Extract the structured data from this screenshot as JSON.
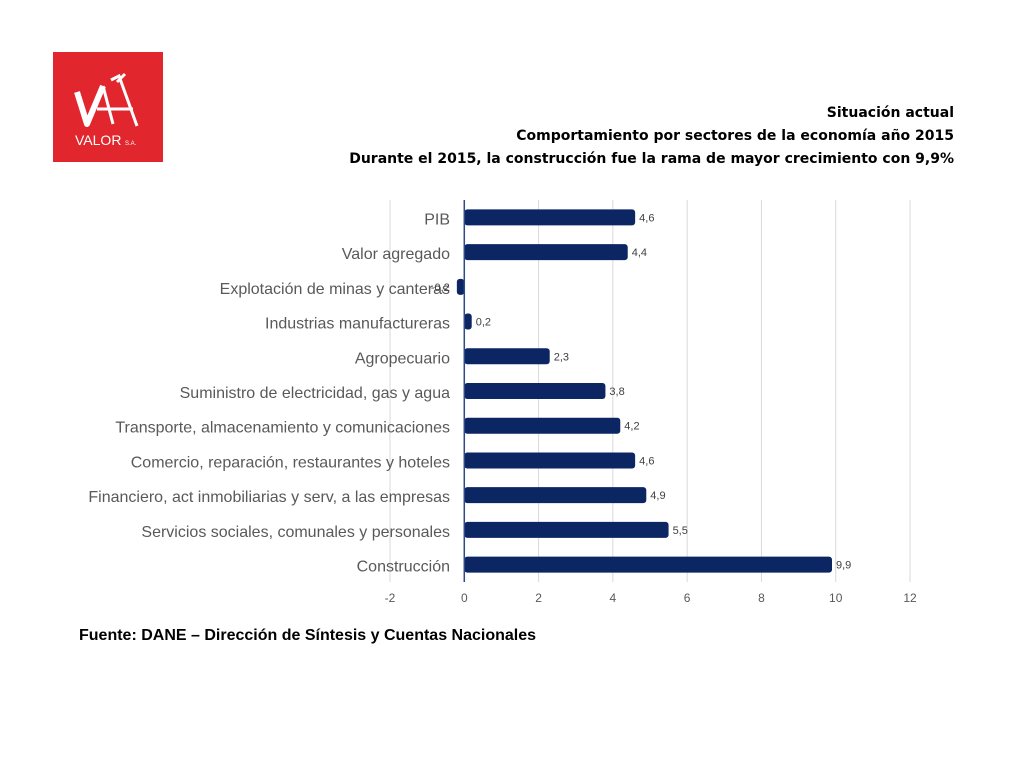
{
  "logo": {
    "text": "VALOR",
    "suffix": "S.A."
  },
  "header": {
    "line1": "Situación actual",
    "line2": "Comportamiento por sectores  de la economía  año 2015",
    "line3": "Durante el 2015, la construcción fue la rama de mayor crecimiento con 9,9%"
  },
  "chart_data": {
    "type": "bar",
    "orientation": "horizontal",
    "categories": [
      "PIB",
      "Valor agregado",
      "Explotación de minas y canteras",
      "Industrias manufactureras",
      "Agropecuario",
      "Suministro de electricidad, gas y agua",
      "Transporte, almacenamiento y comunicaciones",
      "Comercio, reparación, restaurantes y hoteles",
      "Financiero, act inmobiliarias y serv, a las empresas",
      "Servicios sociales, comunales y personales",
      "Construcción"
    ],
    "values": [
      4.6,
      4.4,
      -0.2,
      0.2,
      2.3,
      3.8,
      4.2,
      4.6,
      4.9,
      5.5,
      9.9
    ],
    "value_labels": [
      "4,6",
      "4,4",
      "-0,2",
      "0,2",
      "2,3",
      "3,8",
      "4,2",
      "4,6",
      "4,9",
      "5,5",
      "9,9"
    ],
    "xlim": [
      -2,
      12
    ],
    "xticks": [
      -2,
      0,
      2,
      4,
      6,
      8,
      10,
      12
    ],
    "grid": true,
    "bar_color": "#0c2563",
    "title": "",
    "xlabel": "",
    "ylabel": ""
  },
  "source": "Fuente: DANE – Dirección de Síntesis y Cuentas Nacionales"
}
